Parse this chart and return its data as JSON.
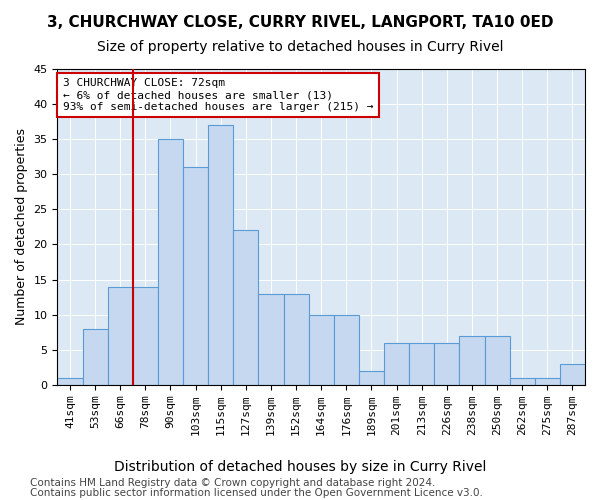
{
  "title": "3, CHURCHWAY CLOSE, CURRY RIVEL, LANGPORT, TA10 0ED",
  "subtitle": "Size of property relative to detached houses in Curry Rivel",
  "xlabel": "Distribution of detached houses by size in Curry Rivel",
  "ylabel": "Number of detached properties",
  "bar_values": [
    1,
    8,
    14,
    14,
    35,
    31,
    37,
    22,
    13,
    13,
    10,
    10,
    2,
    6,
    6,
    6,
    7,
    7,
    1,
    1,
    3
  ],
  "x_labels": [
    "41sqm",
    "53sqm",
    "66sqm",
    "78sqm",
    "90sqm",
    "103sqm",
    "115sqm",
    "127sqm",
    "139sqm",
    "152sqm",
    "164sqm",
    "176sqm",
    "189sqm",
    "201sqm",
    "213sqm",
    "226sqm",
    "238sqm",
    "250sqm",
    "262sqm",
    "275sqm",
    "287sqm"
  ],
  "bar_color": "#c5d8f0",
  "bar_edge_color": "#5b9bd5",
  "vline_x": 2.5,
  "vline_color": "#cc0000",
  "ylim": [
    0,
    45
  ],
  "yticks": [
    0,
    5,
    10,
    15,
    20,
    25,
    30,
    35,
    40,
    45
  ],
  "annotation_text": "3 CHURCHWAY CLOSE: 72sqm\n← 6% of detached houses are smaller (13)\n93% of semi-detached houses are larger (215) →",
  "annotation_box_color": "#ffffff",
  "annotation_box_edge": "#cc0000",
  "footer_line1": "Contains HM Land Registry data © Crown copyright and database right 2024.",
  "footer_line2": "Contains public sector information licensed under the Open Government Licence v3.0.",
  "bg_color": "#ffffff",
  "axes_bg_color": "#dce9f5",
  "grid_color": "#ffffff",
  "title_fontsize": 11,
  "subtitle_fontsize": 10,
  "xlabel_fontsize": 10,
  "ylabel_fontsize": 9,
  "tick_fontsize": 8,
  "footer_fontsize": 7.5
}
